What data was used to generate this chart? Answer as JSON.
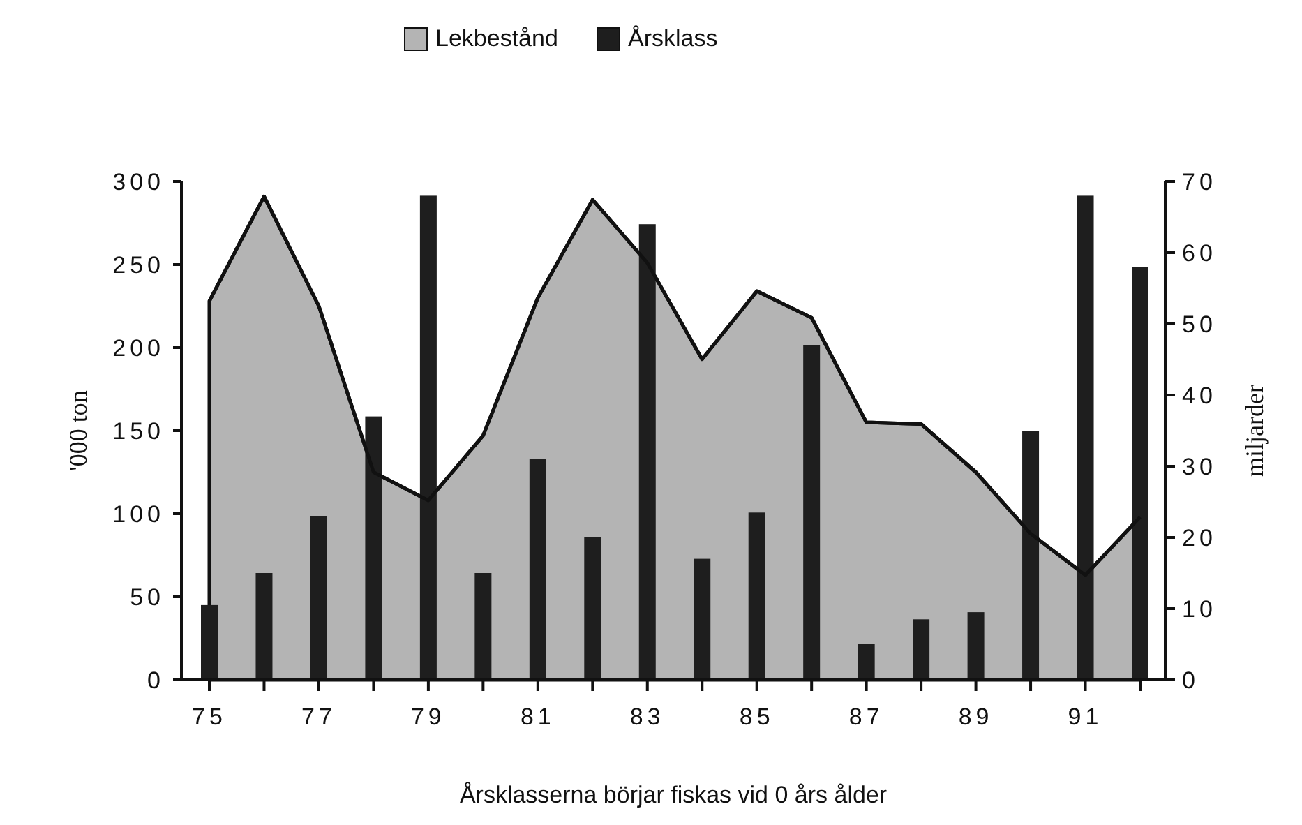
{
  "chart_data": {
    "type": "area",
    "xlabel": "Årsklasserna börjar fiskas vid 0 års ålder",
    "ylabel": "'000 ton",
    "y2label": "miljarder",
    "categories": [
      "75",
      null,
      "77",
      null,
      "79",
      null,
      "81",
      null,
      "83",
      null,
      "85",
      null,
      "87",
      null,
      "89",
      null,
      "91",
      null
    ],
    "series": [
      {
        "name": "Lekbestånd",
        "type": "area",
        "color": "#b4b4b4",
        "values": [
          228,
          291,
          225,
          125,
          108,
          147,
          230,
          289,
          251,
          193,
          234,
          218,
          155,
          154,
          125,
          88,
          63,
          98
        ]
      },
      {
        "name": "Årsklass",
        "type": "bar",
        "axis": "y2",
        "color": "#1e1e1e",
        "values": [
          10.5,
          15,
          23,
          37,
          68,
          15,
          31,
          20,
          64,
          17,
          23.5,
          47,
          5,
          8.5,
          9.5,
          35,
          68,
          58
        ]
      }
    ],
    "ylim": [
      0,
      300
    ],
    "yticks": [
      0,
      50,
      100,
      150,
      200,
      250,
      300
    ],
    "y2lim": [
      0,
      70
    ],
    "y2ticks": [
      0,
      10,
      20,
      30,
      40,
      50,
      60,
      70
    ],
    "legend": "top",
    "grid": false
  }
}
